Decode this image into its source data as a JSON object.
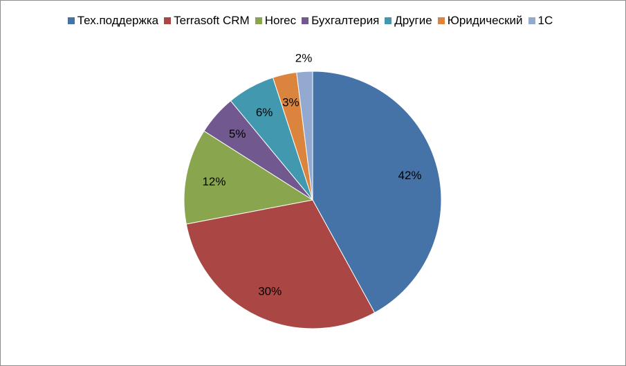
{
  "chart_data": {
    "type": "pie",
    "title": "",
    "legend_position": "top",
    "categories": [
      "Тех.поддержка",
      "Terrasoft CRM",
      "Horec",
      "Бухгалтерия",
      "Другие",
      "Юридический",
      "1С"
    ],
    "values": [
      42,
      30,
      12,
      5,
      6,
      3,
      2
    ],
    "labels": [
      "42%",
      "30%",
      "12%",
      "5%",
      "6%",
      "3%",
      "2%"
    ],
    "colors": [
      "#4572a7",
      "#aa4643",
      "#89a54e",
      "#71588f",
      "#4198af",
      "#db843d",
      "#93a9cf"
    ]
  }
}
